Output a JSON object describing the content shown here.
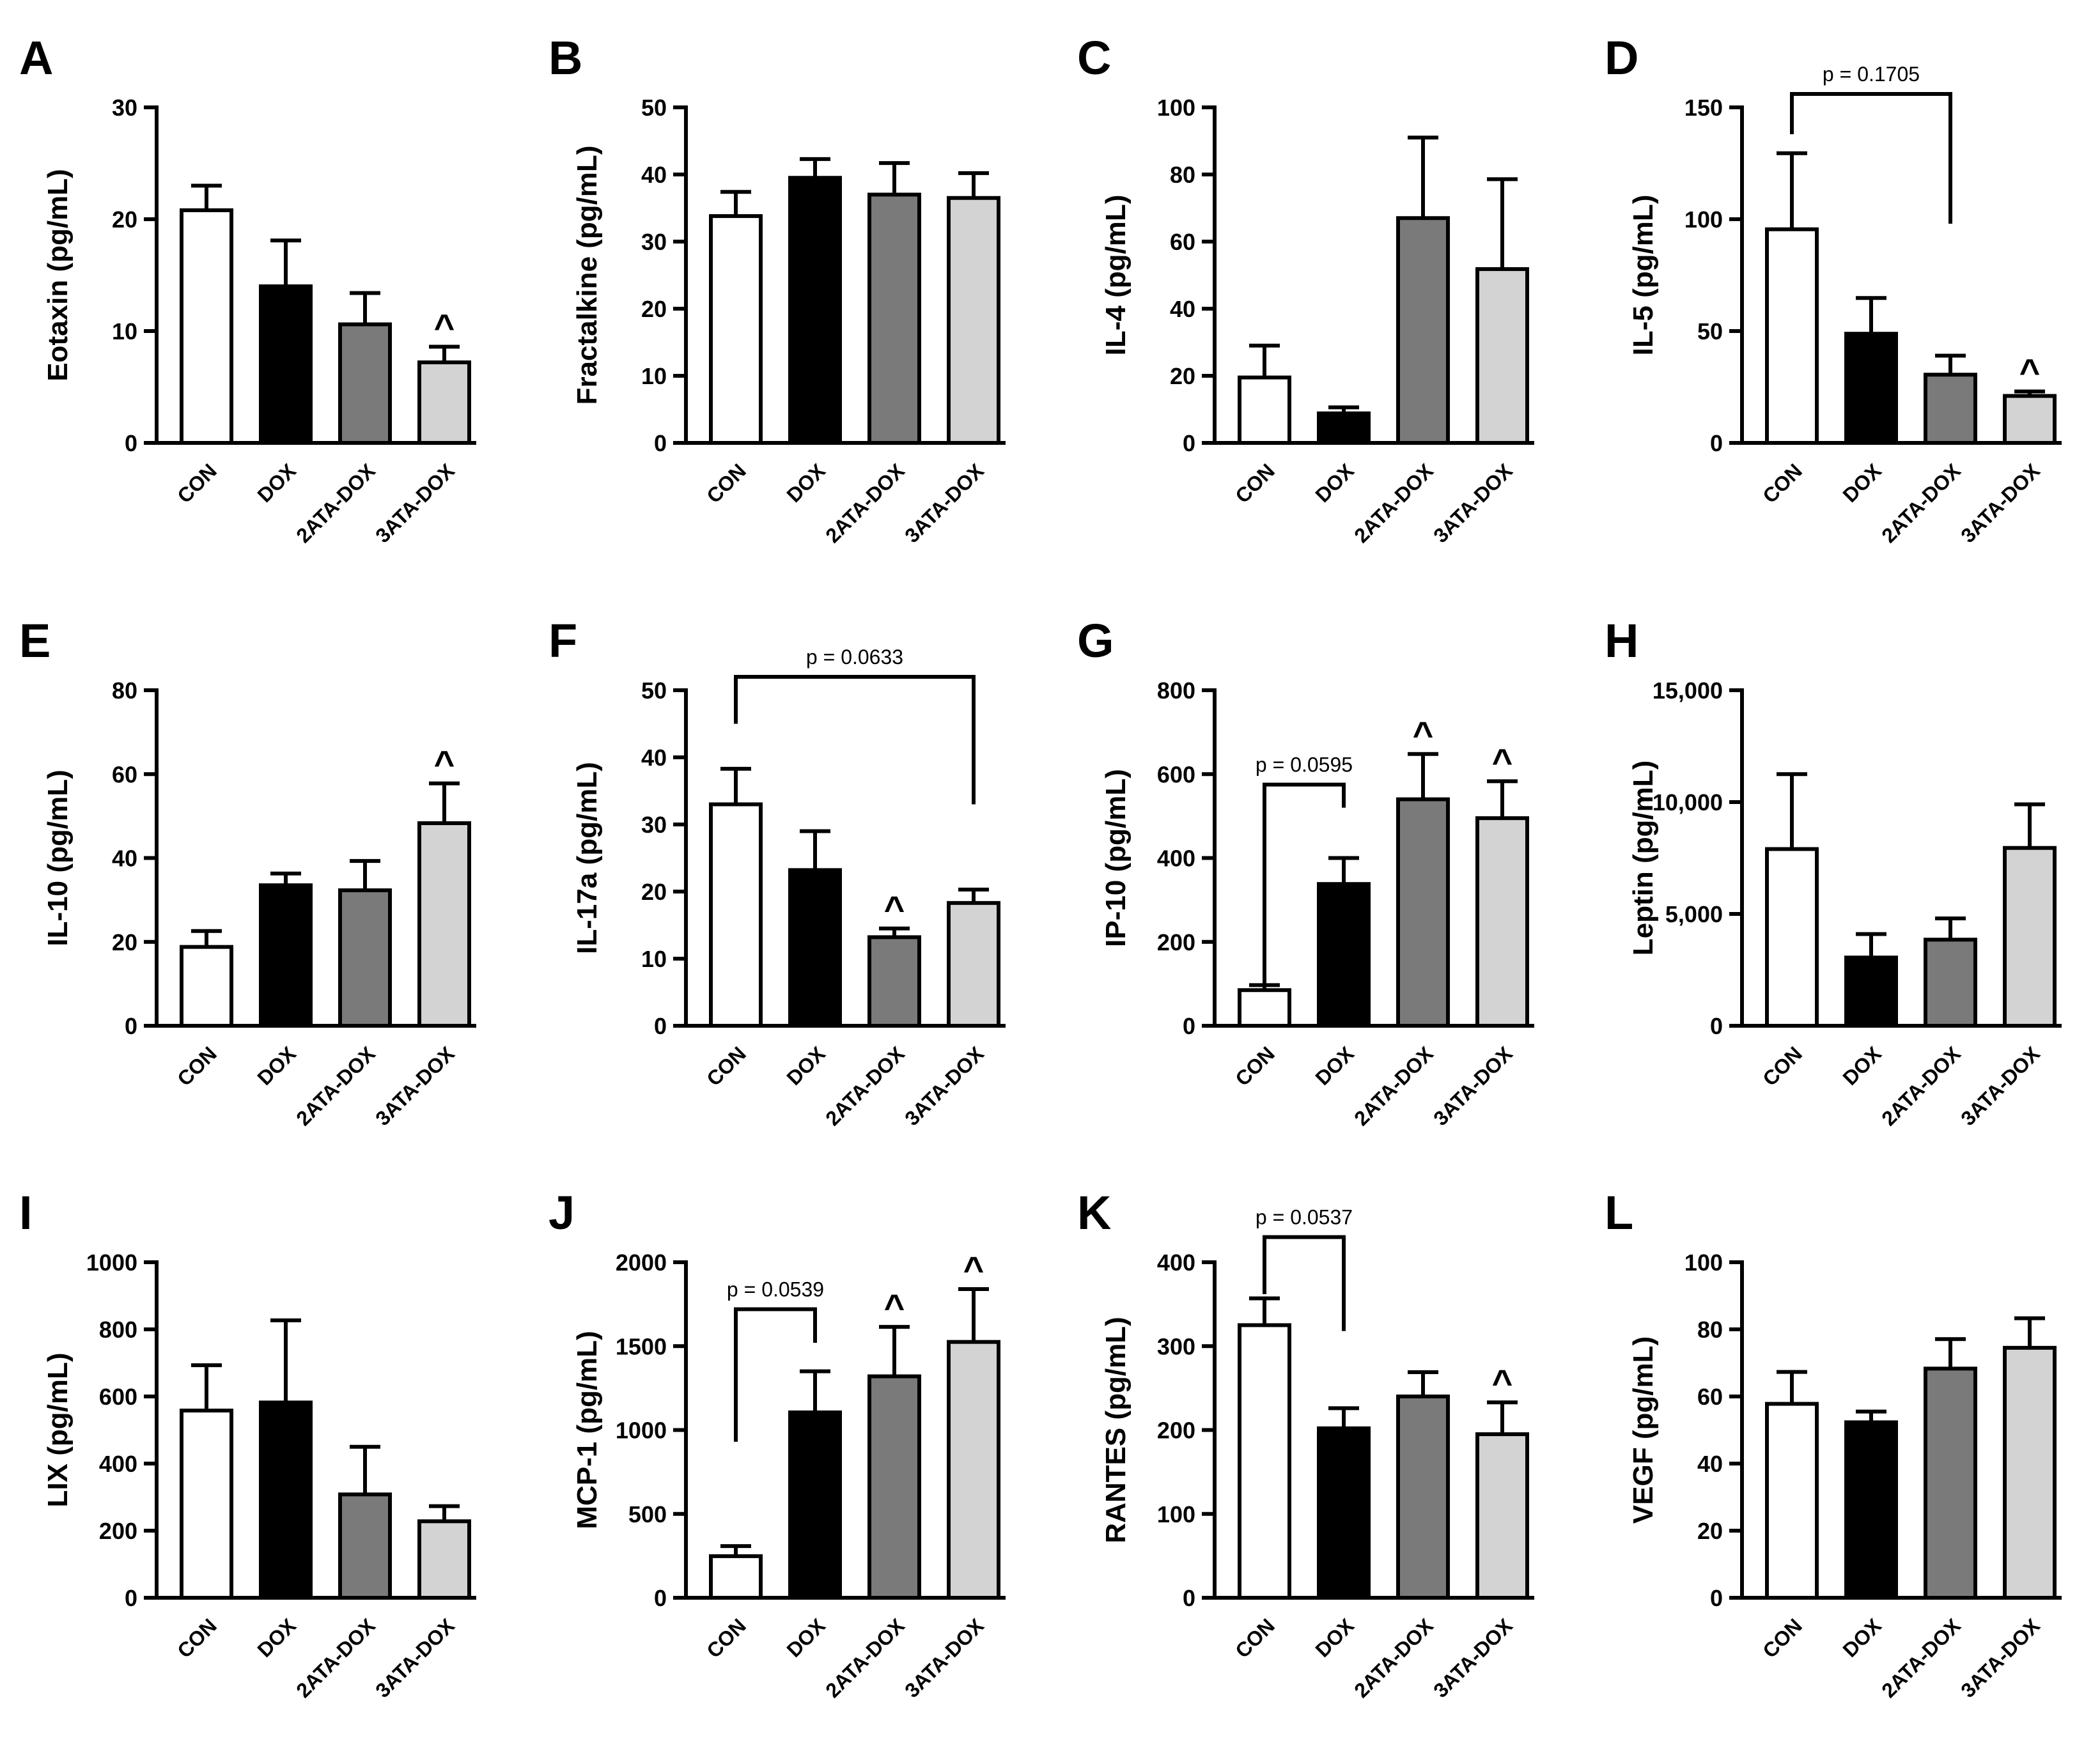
{
  "figure": {
    "categories": [
      "CON",
      "DOX",
      "2ATA-DOX",
      "3ATA-DOX"
    ],
    "bar_colors": [
      "#ffffff",
      "#000000",
      "#7a7a7a",
      "#d3d3d3"
    ]
  },
  "chart_data": [
    {
      "panel": "A",
      "type": "bar",
      "ylabel": "Eotaxin (pg/mL)",
      "ylim": [
        0,
        30
      ],
      "ticks": [
        0,
        10,
        20,
        30
      ],
      "tick_labels": [
        "0",
        "10",
        "20",
        "30"
      ],
      "values": [
        20.8,
        14.0,
        10.6,
        7.2
      ],
      "errors": [
        2.2,
        4.1,
        2.8,
        1.4
      ],
      "markers": [
        "",
        "",
        "",
        "^"
      ],
      "brackets": []
    },
    {
      "panel": "B",
      "type": "bar",
      "ylabel": "Fractalkine (pg/mL)",
      "ylim": [
        0,
        50
      ],
      "ticks": [
        0,
        10,
        20,
        30,
        40,
        50
      ],
      "tick_labels": [
        "0",
        "10",
        "20",
        "30",
        "40",
        "50"
      ],
      "values": [
        33.8,
        39.5,
        37.0,
        36.5
      ],
      "errors": [
        3.6,
        2.8,
        4.7,
        3.7
      ],
      "markers": [
        "",
        "",
        "",
        ""
      ],
      "brackets": []
    },
    {
      "panel": "C",
      "type": "bar",
      "ylabel": "IL-4 (pg/mL)",
      "ylim": [
        0,
        100
      ],
      "ticks": [
        0,
        20,
        40,
        60,
        80,
        100
      ],
      "tick_labels": [
        "0",
        "20",
        "40",
        "60",
        "80",
        "100"
      ],
      "values": [
        19.5,
        8.8,
        67.0,
        51.8
      ],
      "errors": [
        9.5,
        1.8,
        24.0,
        26.8
      ],
      "markers": [
        "",
        "",
        "",
        ""
      ],
      "brackets": []
    },
    {
      "panel": "D",
      "type": "bar",
      "ylabel": "IL-5 (pg/mL)",
      "ylim": [
        0,
        150
      ],
      "ticks": [
        0,
        50,
        100,
        150
      ],
      "tick_labels": [
        "0",
        "50",
        "100",
        "150"
      ],
      "values": [
        95.5,
        48.8,
        30.5,
        21.0
      ],
      "errors": [
        34.0,
        16.0,
        8.5,
        2.0
      ],
      "markers": [
        "",
        "",
        "",
        "^"
      ],
      "brackets": [
        {
          "from": 0,
          "to": 2,
          "label": "p = 0.1705",
          "top": 156,
          "left_end": 138,
          "right_end": 98
        }
      ]
    },
    {
      "panel": "E",
      "type": "bar",
      "ylabel": "IL-10 (pg/mL)",
      "ylim": [
        0,
        80
      ],
      "ticks": [
        0,
        20,
        40,
        60,
        80
      ],
      "tick_labels": [
        "0",
        "20",
        "40",
        "60",
        "80"
      ],
      "values": [
        18.8,
        33.5,
        32.3,
        48.3
      ],
      "errors": [
        3.8,
        2.8,
        7.0,
        9.5
      ],
      "markers": [
        "",
        "",
        "",
        "^"
      ],
      "brackets": []
    },
    {
      "panel": "F",
      "type": "bar",
      "ylabel": "IL-17a (pg/mL)",
      "ylim": [
        0,
        50
      ],
      "ticks": [
        0,
        10,
        20,
        30,
        40,
        50
      ],
      "tick_labels": [
        "0",
        "10",
        "20",
        "30",
        "40",
        "50"
      ],
      "values": [
        33.0,
        23.2,
        13.2,
        18.3
      ],
      "errors": [
        5.3,
        5.8,
        1.3,
        2.0
      ],
      "markers": [
        "",
        "",
        "^",
        ""
      ],
      "brackets": [
        {
          "from": 0,
          "to": 3,
          "label": "p = 0.0633",
          "top": 52,
          "left_end": 45,
          "right_end": 33
        }
      ]
    },
    {
      "panel": "G",
      "type": "bar",
      "ylabel": "IP-10 (pg/mL)",
      "ylim": [
        0,
        800
      ],
      "ticks": [
        0,
        200,
        400,
        600,
        800
      ],
      "tick_labels": [
        "0",
        "200",
        "400",
        "600",
        "800"
      ],
      "values": [
        85,
        338,
        540,
        495
      ],
      "errors": [
        12,
        62,
        108,
        88
      ],
      "markers": [
        "",
        "",
        "^",
        "^"
      ],
      "brackets": [
        {
          "from": 0,
          "to": 1,
          "label": "p = 0.0595",
          "top": 575,
          "left_end": 100,
          "right_end": 520
        }
      ]
    },
    {
      "panel": "H",
      "type": "bar",
      "ylabel": "Leptin (pg/mL)",
      "ylim": [
        0,
        15000
      ],
      "ticks": [
        0,
        5000,
        10000,
        15000
      ],
      "tick_labels": [
        "0",
        "5,000",
        "10,000",
        "15,000"
      ],
      "values": [
        7900,
        3050,
        3850,
        7950
      ],
      "errors": [
        3350,
        1050,
        950,
        1950
      ],
      "markers": [
        "",
        "",
        "",
        ""
      ],
      "brackets": []
    },
    {
      "panel": "I",
      "type": "bar",
      "ylabel": "LIX (pg/mL)",
      "ylim": [
        0,
        1000
      ],
      "ticks": [
        0,
        200,
        400,
        600,
        800,
        1000
      ],
      "tick_labels": [
        "0",
        "200",
        "400",
        "600",
        "800",
        "1000"
      ],
      "values": [
        558,
        582,
        308,
        228
      ],
      "errors": [
        135,
        245,
        142,
        45
      ],
      "markers": [
        "",
        "",
        "",
        ""
      ],
      "brackets": []
    },
    {
      "panel": "J",
      "type": "bar",
      "ylabel": "MCP-1 (pg/mL)",
      "ylim": [
        0,
        2000
      ],
      "ticks": [
        0,
        500,
        1000,
        1500,
        2000
      ],
      "tick_labels": [
        "0",
        "500",
        "1000",
        "1500",
        "2000"
      ],
      "values": [
        248,
        1105,
        1320,
        1525
      ],
      "errors": [
        60,
        245,
        295,
        315
      ],
      "markers": [
        "",
        "",
        "^",
        "^"
      ],
      "brackets": [
        {
          "from": 0,
          "to": 1,
          "label": "p = 0.0539",
          "top": 1720,
          "left_end": 930,
          "right_end": 1520
        }
      ]
    },
    {
      "panel": "K",
      "type": "bar",
      "ylabel": "RANTES (pg/mL)",
      "ylim": [
        0,
        400
      ],
      "ticks": [
        0,
        100,
        200,
        300,
        400
      ],
      "tick_labels": [
        "0",
        "100",
        "200",
        "300",
        "400"
      ],
      "values": [
        325,
        202,
        240,
        195
      ],
      "errors": [
        32,
        24,
        29,
        38
      ],
      "markers": [
        "",
        "",
        "",
        "^"
      ],
      "brackets": [
        {
          "from": 0,
          "to": 1,
          "label": "p = 0.0537",
          "top": 430,
          "left_end": 362,
          "right_end": 318
        }
      ]
    },
    {
      "panel": "L",
      "type": "bar",
      "ylabel": "VEGF (pg/mL)",
      "ylim": [
        0,
        100
      ],
      "ticks": [
        0,
        20,
        40,
        60,
        80,
        100
      ],
      "tick_labels": [
        "0",
        "20",
        "40",
        "60",
        "80",
        "100"
      ],
      "values": [
        57.8,
        52.3,
        68.3,
        74.5
      ],
      "errors": [
        9.5,
        3.2,
        8.8,
        8.8
      ],
      "markers": [
        "",
        "",
        "",
        ""
      ],
      "brackets": []
    }
  ]
}
